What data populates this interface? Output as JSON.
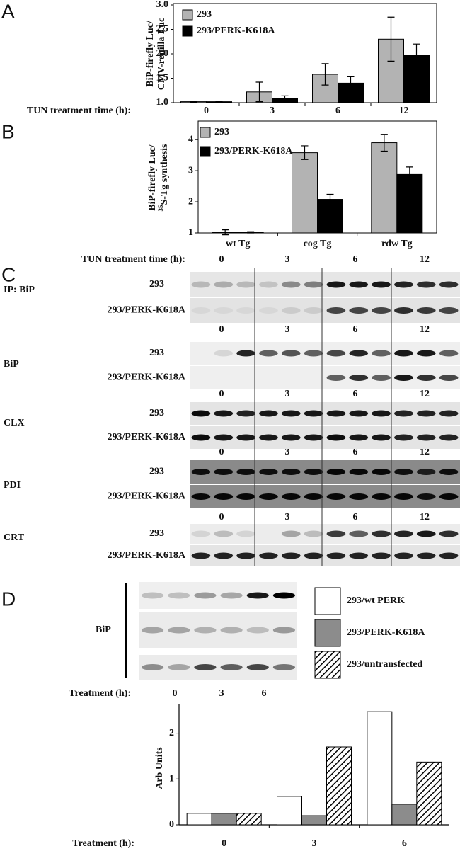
{
  "panel_labels": [
    "A",
    "B",
    "C",
    "D"
  ],
  "chart_data": [
    {
      "type": "bar",
      "ylabel": [
        "BiP-firefly Luc/",
        "CMV-renilla Luc"
      ],
      "xlabel": "TUN treatment time (h):",
      "categories": [
        "0",
        "3",
        "6",
        "12"
      ],
      "series": [
        {
          "name": "293",
          "color": "#b3b3b3",
          "values": [
            1.02,
            1.22,
            1.58,
            2.3
          ],
          "errors": [
            0.01,
            0.2,
            0.22,
            0.45
          ]
        },
        {
          "name": "293/PERK-K618A",
          "color": "#000000",
          "values": [
            1.02,
            1.08,
            1.4,
            1.97
          ],
          "errors": [
            0.01,
            0.06,
            0.13,
            0.23
          ]
        }
      ],
      "ylim": [
        1,
        3
      ],
      "yticks": [
        {
          "value": 1,
          "label": "1.0"
        },
        {
          "value": 1.5,
          "label": "1.5"
        },
        {
          "value": 2,
          "label": "2.0"
        },
        {
          "value": 2.5,
          "label": "2.5"
        },
        {
          "value": 3,
          "label": "3.0"
        }
      ],
      "legend": "upper-left"
    },
    {
      "type": "bar",
      "ylabel": [
        "BiP-firefly Luc/",
        "S-Tg synthesis"
      ],
      "ylabel_superscript": "35",
      "categories": [
        "wt Tg",
        "cog Tg",
        "rdw Tg"
      ],
      "series": [
        {
          "name": "293",
          "color": "#b3b3b3",
          "values": [
            1.02,
            3.58,
            3.9
          ],
          "errors": [
            0.08,
            0.22,
            0.27
          ]
        },
        {
          "name": "293/PERK-K618A",
          "color": "#000000",
          "values": [
            1.02,
            2.08,
            2.88
          ],
          "errors": [
            0.02,
            0.16,
            0.24
          ]
        }
      ],
      "ylim": [
        1,
        4.55
      ],
      "yticks": [
        1,
        2,
        3,
        4
      ],
      "legend": "upper-left"
    },
    {
      "type": "bar",
      "ylabel": [
        "Arb Units"
      ],
      "xlabel": "Treatment (h):",
      "categories": [
        "0",
        "3",
        "6"
      ],
      "series": [
        {
          "name": "293/wt PERK",
          "color": "#ffffff",
          "values": [
            0.25,
            0.62,
            2.47
          ]
        },
        {
          "name": "293/PERK-K618A",
          "color": "#8c8c8c",
          "values": [
            0.25,
            0.2,
            0.45
          ]
        },
        {
          "name": "293/untransfected",
          "color": "#000000",
          "hatch": true,
          "values": [
            0.25,
            1.7,
            1.37
          ]
        }
      ],
      "ylim": [
        0,
        2.55
      ],
      "yticks": [
        0,
        1,
        2
      ],
      "legend": "outside-upper-right"
    }
  ],
  "blots_c": {
    "xlabel": "TUN treatment time (h):",
    "times": [
      "0",
      "3",
      "6",
      "12"
    ],
    "groups": [
      {
        "label": "IP: BiP",
        "rows": [
          "293",
          "293/PERK-K618A"
        ]
      },
      {
        "label": "BiP",
        "rows": [
          "293",
          "293/PERK-K618A"
        ]
      },
      {
        "label": "CLX",
        "rows": [
          "293",
          "293/PERK-K618A"
        ]
      },
      {
        "label": "PDI",
        "rows": [
          "293",
          "293/PERK-K618A"
        ]
      },
      {
        "label": "CRT",
        "rows": [
          "293",
          "293/PERK-K618A"
        ]
      }
    ]
  },
  "blot_d": {
    "label": "BiP"
  }
}
